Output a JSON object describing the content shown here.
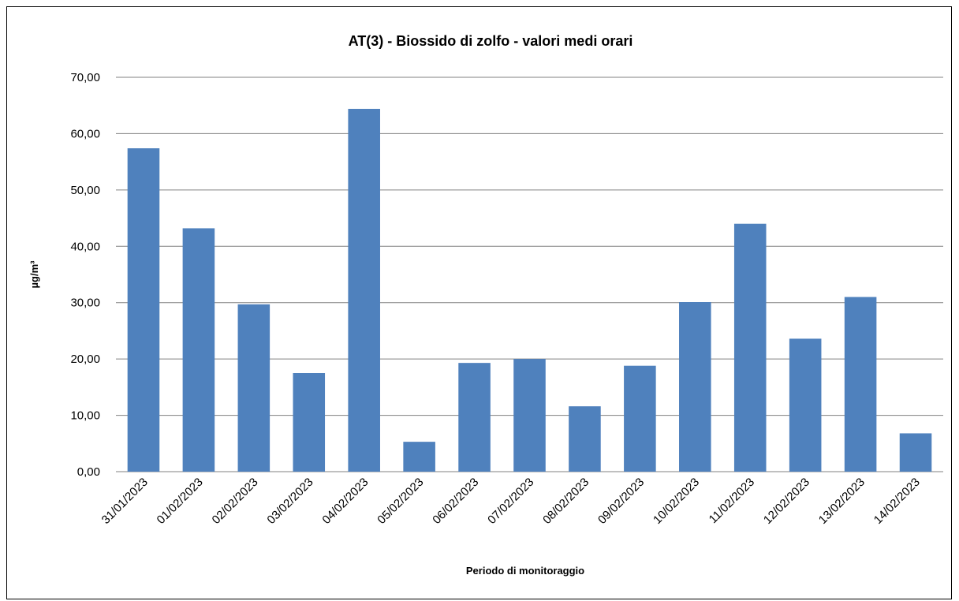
{
  "chart_data": {
    "type": "bar",
    "title": "AT(3) - Biossido di zolfo - valori medi orari",
    "xlabel": "Periodo di  monitoraggio",
    "ylabel": "µg/m³",
    "ylim": [
      0,
      70
    ],
    "yticks": [
      "0,00",
      "10,00",
      "20,00",
      "30,00",
      "40,00",
      "50,00",
      "60,00",
      "70,00"
    ],
    "grid": true,
    "legend": "none",
    "bar_color": "#4f81bd",
    "categories": [
      "31/01/2023",
      "01/02/2023",
      "02/02/2023",
      "03/02/2023",
      "04/02/2023",
      "05/02/2023",
      "06/02/2023",
      "07/02/2023",
      "08/02/2023",
      "09/02/2023",
      "10/02/2023",
      "11/02/2023",
      "12/02/2023",
      "13/02/2023",
      "14/02/2023"
    ],
    "values": [
      57.4,
      43.2,
      29.7,
      17.5,
      64.4,
      5.3,
      19.3,
      20.0,
      11.6,
      18.8,
      30.1,
      44.0,
      23.6,
      31.0,
      6.8
    ]
  }
}
